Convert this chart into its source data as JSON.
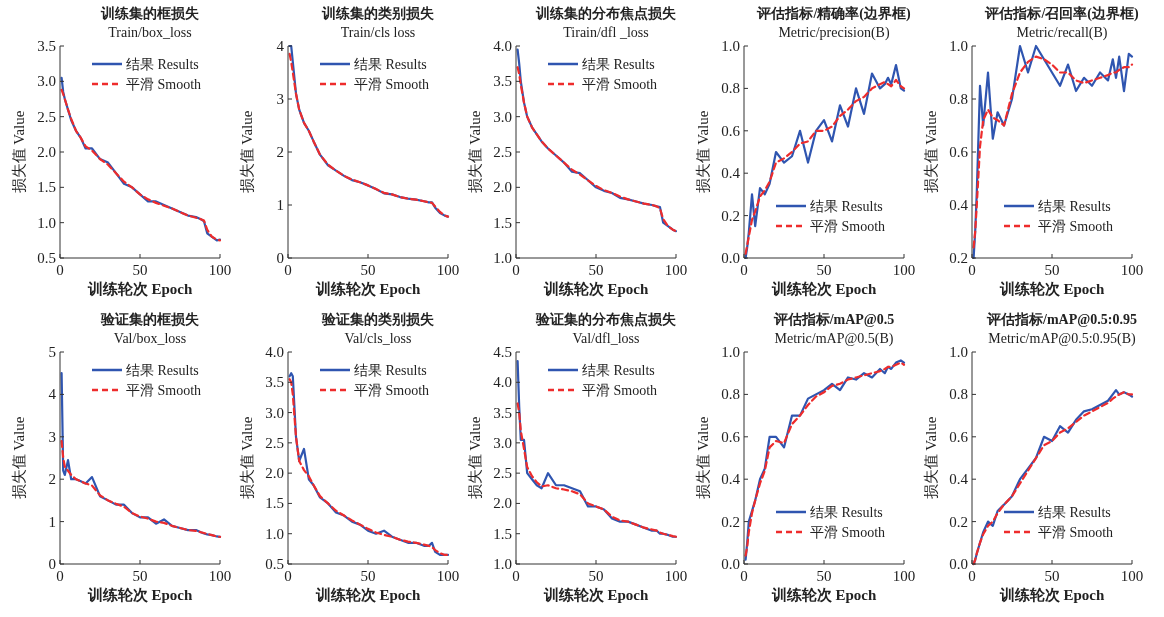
{
  "chart_data": [
    {
      "type": "line",
      "title": "训练集的框损失",
      "subtitle": "Train/box_loss",
      "xlabel": "训练轮次 Epoch",
      "ylabel": "损失值  Value",
      "legend": "top right",
      "xlim": [
        0,
        100
      ],
      "xticks": [
        0,
        50,
        100
      ],
      "ylim": [
        0.5,
        3.5
      ],
      "yticks": [
        0.5,
        {
          "value": 1,
          "label": "1.0"
        },
        1.5,
        {
          "value": 2,
          "label": "2.0"
        },
        2.5,
        {
          "value": 3,
          "label": "3.0"
        },
        3.5
      ],
      "x": [
        1,
        2,
        3,
        5,
        7,
        10,
        13,
        16,
        20,
        25,
        30,
        35,
        40,
        45,
        50,
        55,
        60,
        65,
        70,
        75,
        80,
        85,
        88,
        90,
        92,
        95,
        98,
        100
      ],
      "series": [
        {
          "name": "结果 Results",
          "color": "#2f55b0",
          "line_style": "solid",
          "values": [
            3.05,
            2.85,
            2.75,
            2.6,
            2.45,
            2.3,
            2.2,
            2.05,
            2.05,
            1.9,
            1.85,
            1.7,
            1.55,
            1.5,
            1.4,
            1.3,
            1.3,
            1.25,
            1.2,
            1.15,
            1.1,
            1.08,
            1.05,
            1.02,
            0.85,
            0.8,
            0.75,
            0.76
          ]
        },
        {
          "name": "平滑 Smooth",
          "color": "#ee2c2c",
          "line_style": "dashed",
          "values": [
            2.88,
            2.82,
            2.75,
            2.6,
            2.47,
            2.3,
            2.2,
            2.08,
            2.02,
            1.9,
            1.82,
            1.7,
            1.58,
            1.5,
            1.4,
            1.33,
            1.28,
            1.24,
            1.2,
            1.15,
            1.1,
            1.07,
            1.05,
            1.03,
            0.9,
            0.8,
            0.76,
            0.75
          ]
        }
      ]
    },
    {
      "type": "line",
      "title": "训练集的类别损失",
      "subtitle": "Train/cls loss",
      "xlabel": "训练轮次 Epoch",
      "ylabel": "损失值  Value",
      "legend": "top right",
      "xlim": [
        0,
        100
      ],
      "xticks": [
        0,
        50,
        100
      ],
      "ylim": [
        0,
        4
      ],
      "yticks": [
        0,
        1,
        2,
        3,
        4
      ],
      "x": [
        1,
        2,
        3,
        5,
        7,
        10,
        13,
        16,
        20,
        25,
        30,
        35,
        40,
        45,
        50,
        55,
        60,
        65,
        70,
        75,
        80,
        85,
        88,
        90,
        92,
        95,
        98,
        100
      ],
      "series": [
        {
          "name": "结果 Results",
          "color": "#2f55b0",
          "line_style": "solid",
          "values": [
            4.0,
            4.0,
            3.7,
            3.1,
            2.8,
            2.55,
            2.4,
            2.2,
            1.95,
            1.75,
            1.65,
            1.55,
            1.47,
            1.43,
            1.37,
            1.3,
            1.22,
            1.2,
            1.15,
            1.12,
            1.1,
            1.07,
            1.05,
            1.05,
            0.95,
            0.85,
            0.8,
            0.78
          ]
        },
        {
          "name": "平滑 Smooth",
          "color": "#ee2c2c",
          "line_style": "dashed",
          "values": [
            3.85,
            3.7,
            3.5,
            3.1,
            2.8,
            2.55,
            2.4,
            2.2,
            1.95,
            1.76,
            1.65,
            1.55,
            1.48,
            1.43,
            1.37,
            1.3,
            1.23,
            1.2,
            1.15,
            1.12,
            1.1,
            1.07,
            1.05,
            1.04,
            0.97,
            0.87,
            0.8,
            0.78
          ]
        }
      ]
    },
    {
      "type": "line",
      "title": "训练集的分布焦点损失",
      "subtitle": "Tirain/dfl _loss",
      "xlabel": "训练轮次 Epoch",
      "ylabel": "损失值  Value",
      "legend": "top right",
      "xlim": [
        0,
        100
      ],
      "xticks": [
        0,
        50,
        100
      ],
      "ylim": [
        1,
        4
      ],
      "yticks": [
        {
          "value": 1,
          "label": "1.0"
        },
        1.5,
        {
          "value": 2,
          "label": "2.0"
        },
        2.5,
        {
          "value": 3,
          "label": "3.0"
        },
        3.5,
        {
          "value": 4,
          "label": "4.0"
        }
      ],
      "x": [
        1,
        2,
        3,
        5,
        7,
        10,
        13,
        16,
        20,
        25,
        30,
        35,
        40,
        45,
        50,
        55,
        60,
        65,
        70,
        75,
        80,
        85,
        88,
        90,
        92,
        95,
        98,
        100
      ],
      "series": [
        {
          "name": "结果 Results",
          "color": "#2f55b0",
          "line_style": "solid",
          "values": [
            3.95,
            3.75,
            3.5,
            3.2,
            3.0,
            2.85,
            2.75,
            2.65,
            2.55,
            2.45,
            2.35,
            2.22,
            2.2,
            2.1,
            2.0,
            1.95,
            1.92,
            1.85,
            1.83,
            1.8,
            1.77,
            1.75,
            1.73,
            1.72,
            1.5,
            1.45,
            1.4,
            1.38
          ]
        },
        {
          "name": "平滑 Smooth",
          "color": "#ee2c2c",
          "line_style": "dashed",
          "values": [
            3.7,
            3.6,
            3.45,
            3.2,
            3.0,
            2.85,
            2.75,
            2.65,
            2.55,
            2.45,
            2.35,
            2.25,
            2.18,
            2.1,
            2.02,
            1.96,
            1.92,
            1.87,
            1.83,
            1.8,
            1.77,
            1.75,
            1.73,
            1.7,
            1.55,
            1.45,
            1.4,
            1.38
          ]
        }
      ]
    },
    {
      "type": "line",
      "title": "评估指标/精确率(边界框)",
      "subtitle": "Metric/precision(B)",
      "xlabel": "训练轮次 Epoch",
      "ylabel": "损失值  Value",
      "legend": "bottom right",
      "xlim": [
        0,
        100
      ],
      "xticks": [
        0,
        50,
        100
      ],
      "ylim": [
        0,
        1
      ],
      "yticks": [
        {
          "value": 0,
          "label": "0.0"
        },
        0.2,
        0.4,
        0.6,
        0.8,
        {
          "value": 1,
          "label": "1.0"
        }
      ],
      "x": [
        1,
        2,
        3,
        5,
        7,
        10,
        13,
        16,
        20,
        25,
        30,
        35,
        40,
        45,
        50,
        55,
        60,
        65,
        70,
        75,
        80,
        85,
        88,
        90,
        92,
        95,
        98,
        100
      ],
      "series": [
        {
          "name": "结果 Results",
          "color": "#2f55b0",
          "line_style": "solid",
          "values": [
            0.0,
            0.05,
            0.12,
            0.3,
            0.15,
            0.33,
            0.3,
            0.35,
            0.5,
            0.45,
            0.48,
            0.6,
            0.45,
            0.6,
            0.65,
            0.55,
            0.72,
            0.62,
            0.8,
            0.68,
            0.87,
            0.8,
            0.82,
            0.85,
            0.82,
            0.91,
            0.8,
            0.79
          ]
        },
        {
          "name": "平滑 Smooth",
          "color": "#ee2c2c",
          "line_style": "dashed",
          "values": [
            0.02,
            0.06,
            0.1,
            0.18,
            0.22,
            0.29,
            0.32,
            0.36,
            0.45,
            0.47,
            0.5,
            0.54,
            0.55,
            0.6,
            0.6,
            0.62,
            0.67,
            0.7,
            0.74,
            0.76,
            0.8,
            0.82,
            0.83,
            0.82,
            0.81,
            0.84,
            0.81,
            0.8
          ]
        }
      ]
    },
    {
      "type": "line",
      "title": "评估指标/召回率(边界框)",
      "subtitle": "Metric/recall(B)",
      "xlabel": "训练轮次 Epoch",
      "ylabel": "损失值  Value",
      "legend": "bottom right",
      "xlim": [
        0,
        100
      ],
      "xticks": [
        0,
        50,
        100
      ],
      "ylim": [
        0.2,
        1
      ],
      "yticks": [
        0.2,
        0.4,
        0.6,
        0.8,
        {
          "value": 1,
          "label": "1.0"
        }
      ],
      "x": [
        1,
        2,
        3,
        5,
        7,
        10,
        13,
        16,
        20,
        25,
        30,
        35,
        40,
        45,
        50,
        55,
        60,
        65,
        70,
        75,
        80,
        85,
        88,
        90,
        92,
        95,
        98,
        100
      ],
      "series": [
        {
          "name": "结果 Results",
          "color": "#2f55b0",
          "line_style": "solid",
          "values": [
            0.2,
            0.3,
            0.45,
            0.85,
            0.7,
            0.9,
            0.65,
            0.75,
            0.7,
            0.8,
            1.0,
            0.9,
            1.0,
            0.95,
            0.9,
            0.85,
            0.93,
            0.83,
            0.88,
            0.85,
            0.9,
            0.87,
            0.95,
            0.88,
            0.96,
            0.83,
            0.97,
            0.96
          ]
        },
        {
          "name": "平滑 Smooth",
          "color": "#ee2c2c",
          "line_style": "dashed",
          "values": [
            0.24,
            0.3,
            0.4,
            0.62,
            0.72,
            0.76,
            0.73,
            0.72,
            0.7,
            0.82,
            0.9,
            0.94,
            0.96,
            0.95,
            0.93,
            0.9,
            0.9,
            0.87,
            0.86,
            0.87,
            0.88,
            0.89,
            0.9,
            0.9,
            0.91,
            0.92,
            0.92,
            0.93
          ]
        }
      ]
    },
    {
      "type": "line",
      "title": "验证集的框损失",
      "subtitle": "Val/box_loss",
      "xlabel": "训练轮次 Epoch",
      "ylabel": "损失值  Value",
      "legend": "top right",
      "xlim": [
        0,
        100
      ],
      "xticks": [
        0,
        50,
        100
      ],
      "ylim": [
        0,
        5
      ],
      "yticks": [
        0,
        1,
        2,
        3,
        4,
        5
      ],
      "x": [
        1,
        2,
        3,
        5,
        7,
        10,
        13,
        16,
        20,
        25,
        30,
        35,
        40,
        45,
        50,
        55,
        60,
        65,
        70,
        75,
        80,
        85,
        88,
        90,
        92,
        95,
        98,
        100
      ],
      "series": [
        {
          "name": "结果 Results",
          "color": "#2f55b0",
          "line_style": "solid",
          "values": [
            4.5,
            2.2,
            2.1,
            2.45,
            2.0,
            2.0,
            1.95,
            1.9,
            2.05,
            1.6,
            1.5,
            1.4,
            1.4,
            1.2,
            1.1,
            1.1,
            0.95,
            1.05,
            0.9,
            0.85,
            0.8,
            0.8,
            0.75,
            0.72,
            0.7,
            0.68,
            0.65,
            0.64
          ]
        },
        {
          "name": "平滑 Smooth",
          "color": "#ee2c2c",
          "line_style": "dashed",
          "values": [
            2.9,
            2.5,
            2.3,
            2.2,
            2.1,
            2.0,
            1.95,
            1.9,
            1.85,
            1.62,
            1.5,
            1.42,
            1.35,
            1.2,
            1.12,
            1.07,
            1.0,
            0.97,
            0.9,
            0.85,
            0.8,
            0.78,
            0.75,
            0.73,
            0.71,
            0.68,
            0.65,
            0.64
          ]
        }
      ]
    },
    {
      "type": "line",
      "title": "验证集的类别损失",
      "subtitle": "Val/cls_loss",
      "xlabel": "训练轮次 Epoch",
      "ylabel": "损失值  Value",
      "legend": "top right",
      "xlim": [
        0,
        100
      ],
      "xticks": [
        0,
        50,
        100
      ],
      "ylim": [
        0.5,
        4
      ],
      "yticks": [
        0.5,
        {
          "value": 1,
          "label": "1.0"
        },
        1.5,
        {
          "value": 2,
          "label": "2.0"
        },
        2.5,
        {
          "value": 3,
          "label": "3.0"
        },
        3.5,
        {
          "value": 4,
          "label": "4.0"
        }
      ],
      "x": [
        1,
        2,
        3,
        5,
        7,
        10,
        13,
        16,
        20,
        25,
        30,
        35,
        40,
        45,
        50,
        55,
        60,
        65,
        70,
        75,
        80,
        85,
        88,
        90,
        92,
        95,
        98,
        100
      ],
      "series": [
        {
          "name": "结果 Results",
          "color": "#2f55b0",
          "line_style": "solid",
          "values": [
            3.6,
            3.65,
            3.6,
            2.6,
            2.2,
            2.4,
            1.9,
            1.8,
            1.6,
            1.5,
            1.35,
            1.3,
            1.2,
            1.15,
            1.05,
            1.0,
            1.05,
            0.95,
            0.9,
            0.85,
            0.85,
            0.8,
            0.8,
            0.85,
            0.7,
            0.65,
            0.65,
            0.65
          ]
        },
        {
          "name": "平滑 Smooth",
          "color": "#ee2c2c",
          "line_style": "dashed",
          "values": [
            3.55,
            3.5,
            3.3,
            2.6,
            2.2,
            2.05,
            1.95,
            1.8,
            1.62,
            1.5,
            1.38,
            1.3,
            1.22,
            1.15,
            1.08,
            1.02,
            0.98,
            0.95,
            0.9,
            0.87,
            0.85,
            0.82,
            0.8,
            0.78,
            0.73,
            0.68,
            0.65,
            0.65
          ]
        }
      ]
    },
    {
      "type": "line",
      "title": "验证集的分布焦点损失",
      "subtitle": "Val/dfl_loss",
      "xlabel": "训练轮次 Epoch",
      "ylabel": "损失值  Value",
      "legend": "top right",
      "xlim": [
        0,
        100
      ],
      "xticks": [
        0,
        50,
        100
      ],
      "ylim": [
        1,
        4.5
      ],
      "yticks": [
        {
          "value": 1,
          "label": "1.0"
        },
        1.5,
        {
          "value": 2,
          "label": "2.0"
        },
        2.5,
        {
          "value": 3,
          "label": "3.0"
        },
        3.5,
        {
          "value": 4,
          "label": "4.0"
        },
        4.5
      ],
      "x": [
        1,
        2,
        3,
        5,
        7,
        10,
        13,
        16,
        20,
        25,
        30,
        35,
        40,
        45,
        50,
        55,
        60,
        65,
        70,
        75,
        80,
        85,
        88,
        90,
        92,
        95,
        98,
        100
      ],
      "series": [
        {
          "name": "结果 Results",
          "color": "#2f55b0",
          "line_style": "solid",
          "values": [
            4.35,
            3.6,
            3.05,
            3.05,
            2.5,
            2.4,
            2.3,
            2.25,
            2.5,
            2.3,
            2.3,
            2.25,
            2.2,
            1.95,
            1.95,
            1.9,
            1.75,
            1.7,
            1.7,
            1.65,
            1.6,
            1.55,
            1.55,
            1.5,
            1.5,
            1.48,
            1.45,
            1.45
          ]
        },
        {
          "name": "平滑 Smooth",
          "color": "#ee2c2c",
          "line_style": "dashed",
          "values": [
            3.65,
            3.5,
            3.2,
            2.9,
            2.6,
            2.45,
            2.35,
            2.28,
            2.3,
            2.25,
            2.23,
            2.2,
            2.15,
            2.0,
            1.95,
            1.9,
            1.78,
            1.72,
            1.7,
            1.65,
            1.6,
            1.57,
            1.55,
            1.52,
            1.5,
            1.48,
            1.46,
            1.45
          ]
        }
      ]
    },
    {
      "type": "line",
      "title": "评估指标/mAP@0.5",
      "subtitle": "Metric/mAP@0.5(B)",
      "xlabel": "训练轮次 Epoch",
      "ylabel": "损失值  Value",
      "legend": "bottom right",
      "xlim": [
        0,
        100
      ],
      "xticks": [
        0,
        50,
        100
      ],
      "ylim": [
        0,
        1
      ],
      "yticks": [
        {
          "value": 0,
          "label": "0.0"
        },
        0.2,
        0.4,
        0.6,
        0.8,
        {
          "value": 1,
          "label": "1.0"
        }
      ],
      "x": [
        1,
        2,
        3,
        5,
        7,
        10,
        13,
        16,
        20,
        25,
        30,
        35,
        40,
        45,
        50,
        55,
        60,
        65,
        70,
        75,
        80,
        85,
        88,
        90,
        92,
        95,
        98,
        100
      ],
      "series": [
        {
          "name": "结果 Results",
          "color": "#2f55b0",
          "line_style": "solid",
          "values": [
            0.02,
            0.1,
            0.2,
            0.25,
            0.3,
            0.4,
            0.45,
            0.6,
            0.6,
            0.55,
            0.7,
            0.7,
            0.78,
            0.8,
            0.82,
            0.85,
            0.82,
            0.88,
            0.87,
            0.9,
            0.88,
            0.92,
            0.9,
            0.93,
            0.92,
            0.95,
            0.96,
            0.95
          ]
        },
        {
          "name": "平滑 Smooth",
          "color": "#ee2c2c",
          "line_style": "dashed",
          "values": [
            0.04,
            0.08,
            0.15,
            0.24,
            0.3,
            0.38,
            0.44,
            0.55,
            0.58,
            0.57,
            0.66,
            0.7,
            0.75,
            0.79,
            0.81,
            0.84,
            0.85,
            0.87,
            0.88,
            0.89,
            0.9,
            0.91,
            0.92,
            0.93,
            0.93,
            0.94,
            0.95,
            0.94
          ]
        }
      ]
    },
    {
      "type": "line",
      "title": "评估指标/mAP@0.5:0.95",
      "subtitle": "Metric/mAP@0.5:0.95(B)",
      "xlabel": "训练轮次 Epoch",
      "ylabel": "损失值  Value",
      "legend": "bottom right",
      "xlim": [
        0,
        100
      ],
      "xticks": [
        0,
        50,
        100
      ],
      "ylim": [
        0,
        1
      ],
      "yticks": [
        {
          "value": 0,
          "label": "0.0"
        },
        0.2,
        0.4,
        0.6,
        0.8,
        {
          "value": 1,
          "label": "1.0"
        }
      ],
      "x": [
        1,
        2,
        3,
        5,
        7,
        10,
        13,
        16,
        20,
        25,
        30,
        35,
        40,
        45,
        50,
        55,
        60,
        65,
        70,
        75,
        80,
        85,
        88,
        90,
        92,
        95,
        98,
        100
      ],
      "series": [
        {
          "name": "结果 Results",
          "color": "#2f55b0",
          "line_style": "solid",
          "values": [
            0.0,
            0.02,
            0.05,
            0.1,
            0.15,
            0.2,
            0.18,
            0.25,
            0.28,
            0.32,
            0.4,
            0.45,
            0.5,
            0.6,
            0.58,
            0.65,
            0.62,
            0.68,
            0.72,
            0.73,
            0.75,
            0.77,
            0.8,
            0.82,
            0.8,
            0.81,
            0.8,
            0.79
          ]
        },
        {
          "name": "平滑 Smooth",
          "color": "#ee2c2c",
          "line_style": "dashed",
          "values": [
            0.0,
            0.02,
            0.05,
            0.1,
            0.14,
            0.18,
            0.2,
            0.24,
            0.28,
            0.32,
            0.38,
            0.44,
            0.5,
            0.56,
            0.58,
            0.62,
            0.64,
            0.67,
            0.7,
            0.72,
            0.74,
            0.76,
            0.78,
            0.79,
            0.8,
            0.81,
            0.8,
            0.8
          ]
        }
      ]
    }
  ]
}
